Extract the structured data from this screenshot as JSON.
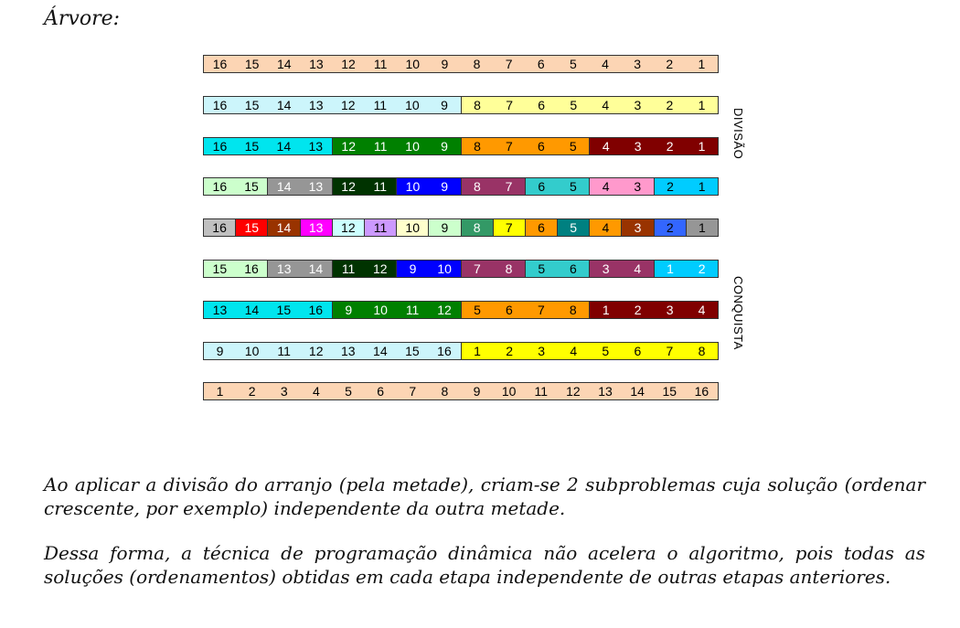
{
  "title": "Árvore:",
  "side_labels": {
    "division": "DIVISÃO",
    "conquest": "CONQUISTA"
  },
  "rows": [
    {
      "values": [
        16,
        15,
        14,
        13,
        12,
        11,
        10,
        9,
        8,
        7,
        6,
        5,
        4,
        3,
        2,
        1
      ],
      "colors": [
        "#fcd5b4",
        "#fcd5b4",
        "#fcd5b4",
        "#fcd5b4",
        "#fcd5b4",
        "#fcd5b4",
        "#fcd5b4",
        "#fcd5b4",
        "#fcd5b4",
        "#fcd5b4",
        "#fcd5b4",
        "#fcd5b4",
        "#fcd5b4",
        "#fcd5b4",
        "#fcd5b4",
        "#fcd5b4"
      ],
      "text": [
        "#000",
        "#000",
        "#000",
        "#000",
        "#000",
        "#000",
        "#000",
        "#000",
        "#000",
        "#000",
        "#000",
        "#000",
        "#000",
        "#000",
        "#000",
        "#000"
      ],
      "groups": 1
    },
    {
      "values": [
        16,
        15,
        14,
        13,
        12,
        11,
        10,
        9,
        8,
        7,
        6,
        5,
        4,
        3,
        2,
        1
      ],
      "colors": [
        "#ccf5fb",
        "#ccf5fb",
        "#ccf5fb",
        "#ccf5fb",
        "#ccf5fb",
        "#ccf5fb",
        "#ccf5fb",
        "#ccf5fb",
        "#ffff99",
        "#ffff99",
        "#ffff99",
        "#ffff99",
        "#ffff99",
        "#ffff99",
        "#ffff99",
        "#ffff99"
      ],
      "text": [
        "#000",
        "#000",
        "#000",
        "#000",
        "#000",
        "#000",
        "#000",
        "#000",
        "#000",
        "#000",
        "#000",
        "#000",
        "#000",
        "#000",
        "#000",
        "#000"
      ],
      "groups": 2
    },
    {
      "values": [
        16,
        15,
        14,
        13,
        12,
        11,
        10,
        9,
        8,
        7,
        6,
        5,
        4,
        3,
        2,
        1
      ],
      "colors": [
        "#00e5ee",
        "#00e5ee",
        "#00e5ee",
        "#00e5ee",
        "#008000",
        "#008000",
        "#008000",
        "#008000",
        "#ff9900",
        "#ff9900",
        "#ff9900",
        "#ff9900",
        "#800000",
        "#800000",
        "#800000",
        "#800000"
      ],
      "text": [
        "#000",
        "#000",
        "#000",
        "#000",
        "#fff",
        "#fff",
        "#fff",
        "#fff",
        "#000",
        "#000",
        "#000",
        "#000",
        "#fff",
        "#fff",
        "#fff",
        "#fff"
      ],
      "groups": 4
    },
    {
      "values": [
        16,
        15,
        14,
        13,
        12,
        11,
        10,
        9,
        8,
        7,
        6,
        5,
        4,
        3,
        2,
        1
      ],
      "colors": [
        "#ccffcc",
        "#ccffcc",
        "#969696",
        "#969696",
        "#003300",
        "#003300",
        "#0000ff",
        "#0000ff",
        "#993366",
        "#993366",
        "#33cccc",
        "#33cccc",
        "#ff99cc",
        "#ff99cc",
        "#00ccff",
        "#00ccff"
      ],
      "text": [
        "#000",
        "#000",
        "#fff",
        "#fff",
        "#fff",
        "#fff",
        "#fff",
        "#fff",
        "#fff",
        "#fff",
        "#000",
        "#000",
        "#000",
        "#000",
        "#000",
        "#000"
      ],
      "groups": 8
    },
    {
      "values": [
        16,
        15,
        14,
        13,
        12,
        11,
        10,
        9,
        8,
        7,
        6,
        5,
        4,
        3,
        2,
        1
      ],
      "colors": [
        "#c0c0c0",
        "#ff0000",
        "#993300",
        "#ff00ff",
        "#ccffff",
        "#cc99ff",
        "#ffffcc",
        "#ccffcc",
        "#339966",
        "#ffff00",
        "#ff9900",
        "#008080",
        "#ff9900",
        "#993300",
        "#3366ff",
        "#969696"
      ],
      "text": [
        "#000",
        "#fff",
        "#fff",
        "#fff",
        "#000",
        "#000",
        "#000",
        "#000",
        "#fff",
        "#000",
        "#000",
        "#fff",
        "#000",
        "#fff",
        "#000",
        "#000"
      ],
      "groups": 16
    },
    {
      "values": [
        15,
        16,
        13,
        14,
        11,
        12,
        9,
        10,
        7,
        8,
        5,
        6,
        3,
        4,
        1,
        2
      ],
      "colors": [
        "#ccffcc",
        "#ccffcc",
        "#969696",
        "#969696",
        "#003300",
        "#003300",
        "#0000ff",
        "#0000ff",
        "#993366",
        "#993366",
        "#33cccc",
        "#33cccc",
        "#993366",
        "#993366",
        "#00ccff",
        "#00ccff"
      ],
      "text": [
        "#000",
        "#000",
        "#fff",
        "#fff",
        "#fff",
        "#fff",
        "#fff",
        "#fff",
        "#fff",
        "#fff",
        "#000",
        "#000",
        "#fff",
        "#fff",
        "#fff",
        "#fff"
      ],
      "groups": 8
    },
    {
      "values": [
        13,
        14,
        15,
        16,
        9,
        10,
        11,
        12,
        5,
        6,
        7,
        8,
        1,
        2,
        3,
        4
      ],
      "colors": [
        "#00e5ee",
        "#00e5ee",
        "#00e5ee",
        "#00e5ee",
        "#008000",
        "#008000",
        "#008000",
        "#008000",
        "#ff9900",
        "#ff9900",
        "#ff9900",
        "#ff9900",
        "#800000",
        "#800000",
        "#800000",
        "#800000"
      ],
      "text": [
        "#000",
        "#000",
        "#000",
        "#000",
        "#fff",
        "#fff",
        "#fff",
        "#fff",
        "#000",
        "#000",
        "#000",
        "#000",
        "#fff",
        "#fff",
        "#fff",
        "#fff"
      ],
      "groups": 4
    },
    {
      "values": [
        9,
        10,
        11,
        12,
        13,
        14,
        15,
        16,
        1,
        2,
        3,
        4,
        5,
        6,
        7,
        8
      ],
      "colors": [
        "#ccf5fb",
        "#ccf5fb",
        "#ccf5fb",
        "#ccf5fb",
        "#ccf5fb",
        "#ccf5fb",
        "#ccf5fb",
        "#ccf5fb",
        "#ffff00",
        "#ffff00",
        "#ffff00",
        "#ffff00",
        "#ffff00",
        "#ffff00",
        "#ffff00",
        "#ffff00"
      ],
      "text": [
        "#000",
        "#000",
        "#000",
        "#000",
        "#000",
        "#000",
        "#000",
        "#000",
        "#000",
        "#000",
        "#000",
        "#000",
        "#000",
        "#000",
        "#000",
        "#000"
      ],
      "groups": 2
    },
    {
      "values": [
        1,
        2,
        3,
        4,
        5,
        6,
        7,
        8,
        9,
        10,
        11,
        12,
        13,
        14,
        15,
        16
      ],
      "colors": [
        "#fcd5b4",
        "#fcd5b4",
        "#fcd5b4",
        "#fcd5b4",
        "#fcd5b4",
        "#fcd5b4",
        "#fcd5b4",
        "#fcd5b4",
        "#fcd5b4",
        "#fcd5b4",
        "#fcd5b4",
        "#fcd5b4",
        "#fcd5b4",
        "#fcd5b4",
        "#fcd5b4",
        "#fcd5b4"
      ],
      "text": [
        "#000",
        "#000",
        "#000",
        "#000",
        "#000",
        "#000",
        "#000",
        "#000",
        "#000",
        "#000",
        "#000",
        "#000",
        "#000",
        "#000",
        "#000",
        "#000"
      ],
      "groups": 1
    }
  ],
  "paragraphs": [
    "Ao aplicar a divisão do arranjo (pela metade), criam-se 2 subproblemas cuja solução (ordenar crescente, por exemplo) independente da outra metade.",
    "Dessa forma, a técnica de programação dinâmica não acelera o algoritmo, pois todas as soluções (ordenamentos) obtidas em cada etapa independente de outras etapas anteriores."
  ]
}
